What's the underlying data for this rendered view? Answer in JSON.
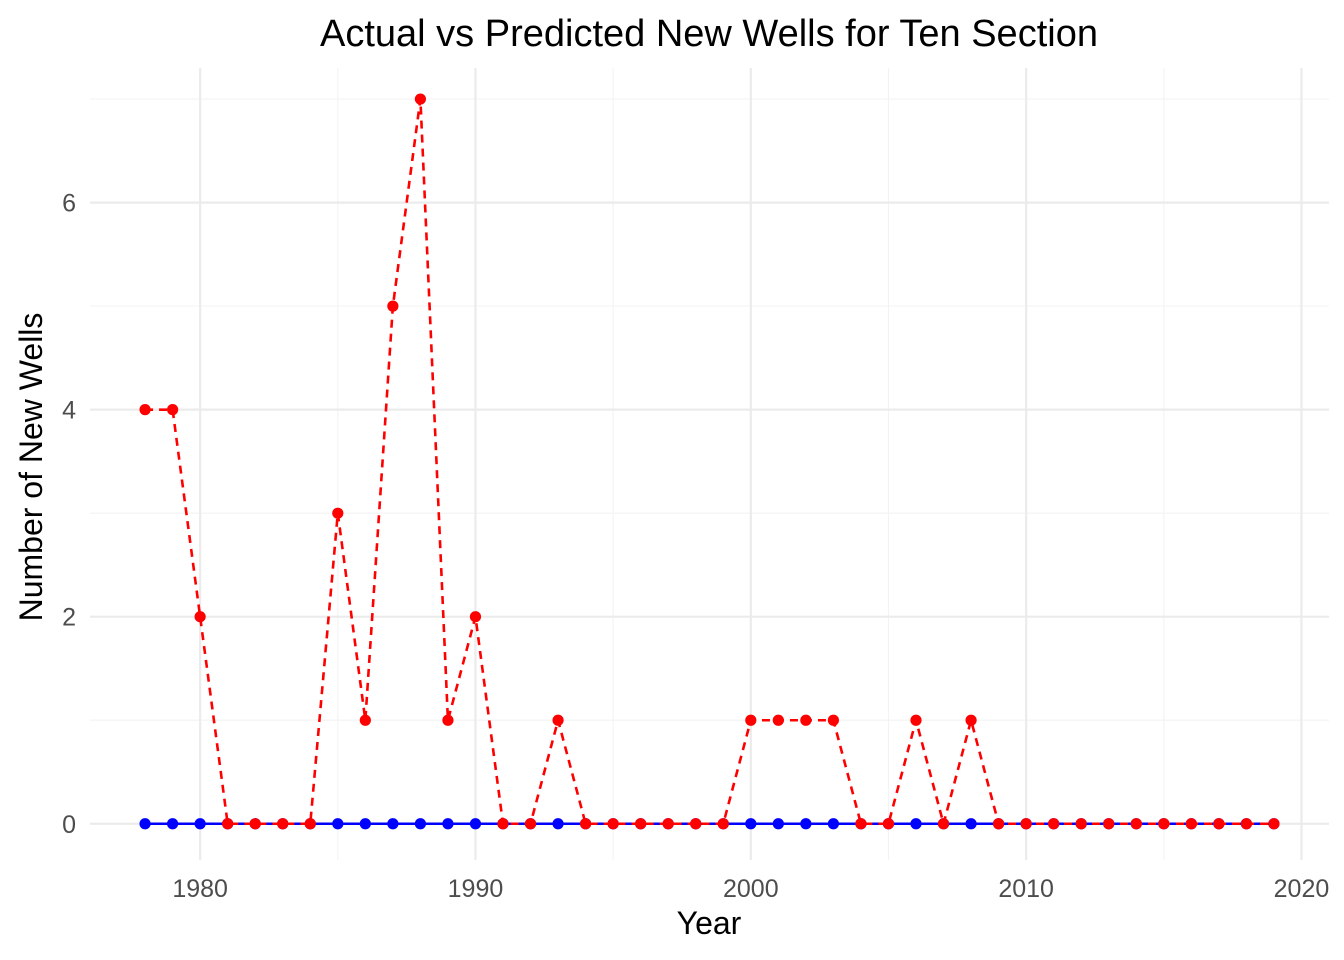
{
  "chart_data": {
    "type": "line",
    "title": "Actual vs Predicted New Wells for Ten Section",
    "xlabel": "Year",
    "ylabel": "Number of New Wells",
    "xlim": [
      1976,
      2021
    ],
    "ylim": [
      -0.35,
      7.3
    ],
    "x_ticks": [
      "1980",
      "1990",
      "2000",
      "2010",
      "2020"
    ],
    "y_ticks": [
      "0",
      "2",
      "4",
      "6"
    ],
    "grid": true,
    "legend": "none",
    "x": [
      1978,
      1979,
      1980,
      1981,
      1982,
      1983,
      1984,
      1985,
      1986,
      1987,
      1988,
      1989,
      1990,
      1991,
      1992,
      1993,
      1994,
      1995,
      1996,
      1997,
      1998,
      1999,
      2000,
      2001,
      2002,
      2003,
      2004,
      2005,
      2006,
      2007,
      2008,
      2009,
      2010,
      2011,
      2012,
      2013,
      2014,
      2015,
      2016,
      2017,
      2018,
      2019
    ],
    "series": [
      {
        "color": "#0000ff",
        "line_style": "solid",
        "values": [
          0,
          0,
          0,
          0,
          0,
          0,
          0,
          0,
          0,
          0,
          0,
          0,
          0,
          0,
          0,
          0,
          0,
          0,
          0,
          0,
          0,
          0,
          0,
          0,
          0,
          0,
          0,
          0,
          0,
          0,
          0,
          0,
          0,
          0,
          0,
          0,
          0,
          0,
          0,
          0,
          0,
          0
        ]
      },
      {
        "color": "#ff0000",
        "line_style": "dashed",
        "values": [
          4,
          4,
          2,
          0,
          0,
          0,
          0,
          3,
          1,
          5,
          7,
          1,
          2,
          0,
          0,
          1,
          0,
          0,
          0,
          0,
          0,
          0,
          1,
          1,
          1,
          1,
          0,
          0,
          1,
          0,
          1,
          0,
          0,
          0,
          0,
          0,
          0,
          0,
          0,
          0,
          0,
          0
        ]
      }
    ]
  }
}
